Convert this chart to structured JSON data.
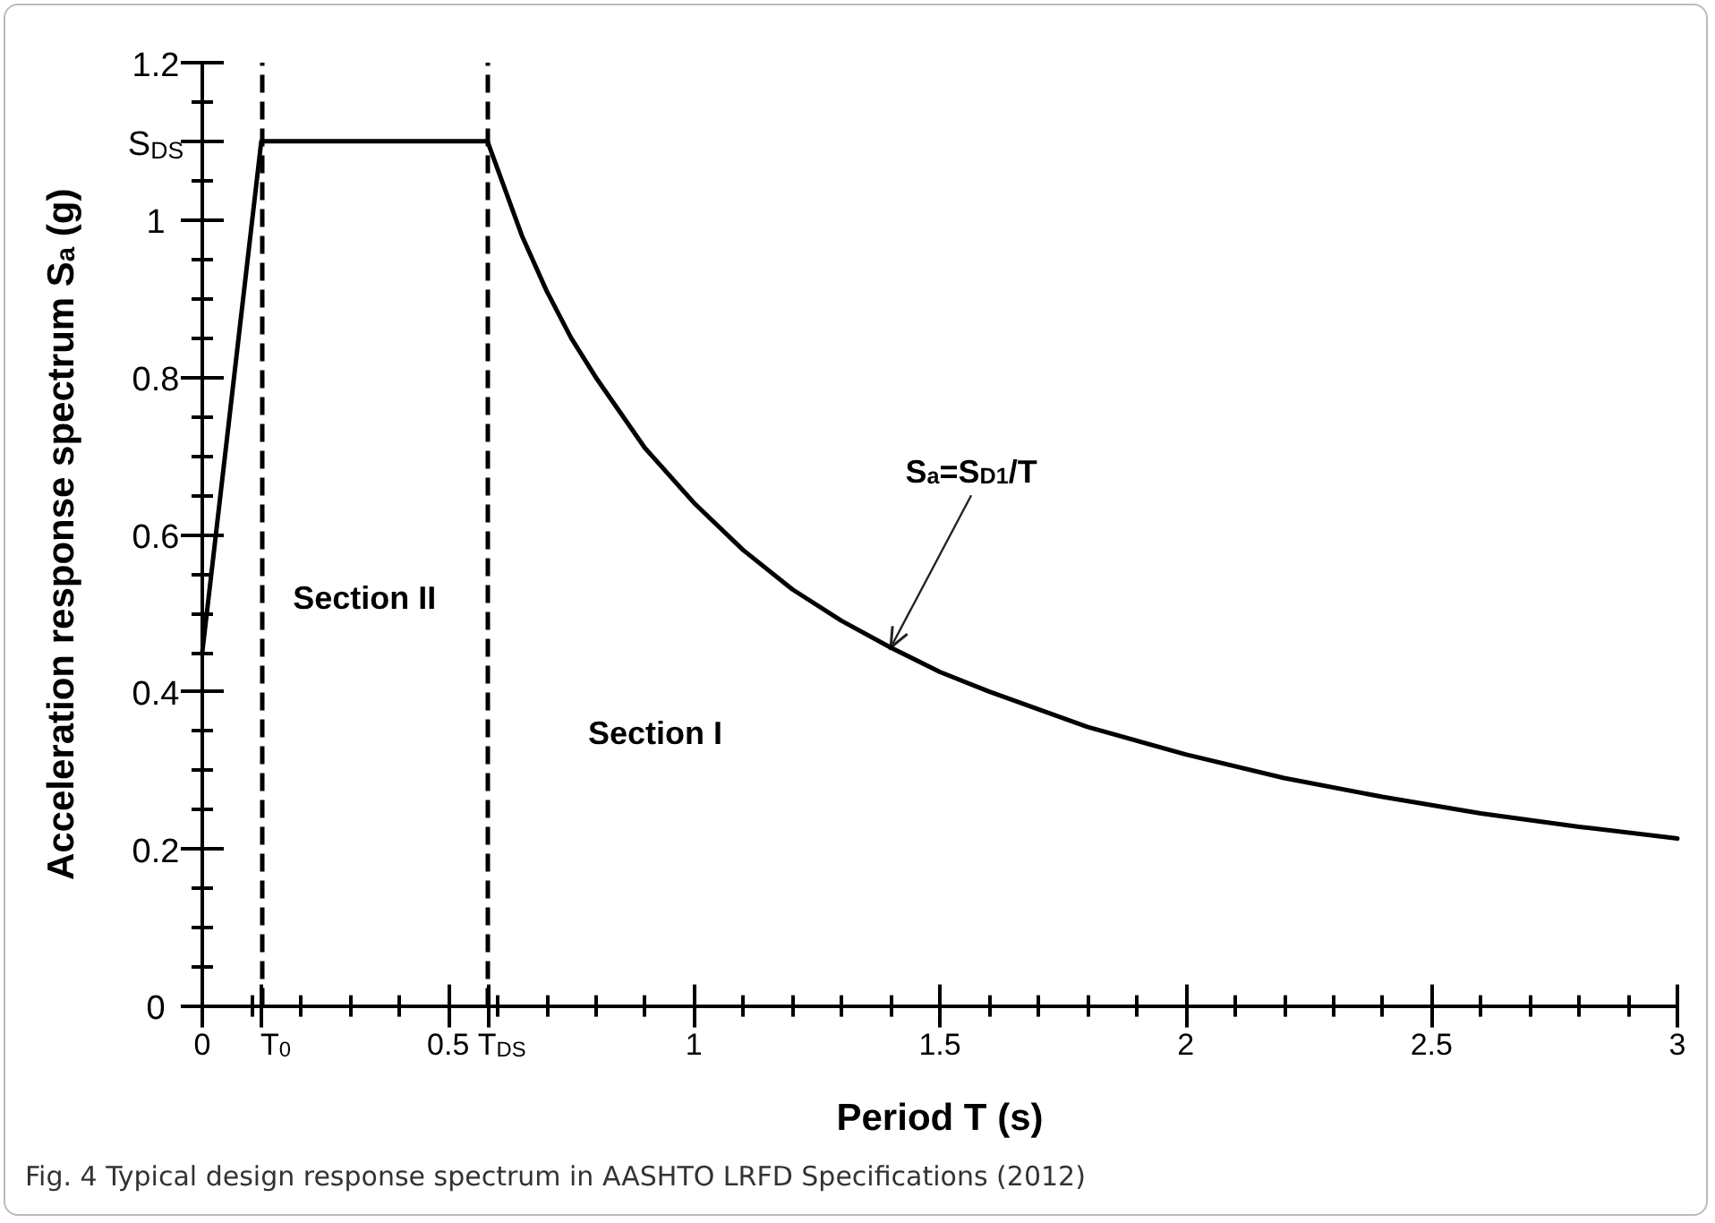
{
  "chart_data": {
    "type": "line",
    "xlabel": "Period T (s)",
    "ylabel": "Acceleration response spectrum S$_{a}$ (g)",
    "series": [
      {
        "color": "#000000",
        "x": [
          0,
          0.12,
          0.58,
          0.65,
          0.7,
          0.75,
          0.8,
          0.9,
          1.0,
          1.1,
          1.2,
          1.3,
          1.4,
          1.5,
          1.6,
          1.8,
          2.0,
          2.2,
          2.4,
          2.6,
          2.8,
          3.0
        ],
        "values": [
          0.45,
          1.1,
          1.1,
          0.98,
          0.91,
          0.85,
          0.8,
          0.71,
          0.64,
          0.58,
          0.53,
          0.49,
          0.456,
          0.425,
          0.4,
          0.355,
          0.32,
          0.29,
          0.266,
          0.245,
          0.228,
          0.213
        ]
      }
    ],
    "xlim": [
      0,
      3
    ],
    "ylim": [
      0,
      1.2
    ],
    "xticks": [
      0,
      {
        "value": 0.1,
        "label": null
      },
      {
        "value": 0.12,
        "label": "T$_{0}$"
      },
      {
        "value": 0.2,
        "label": null
      },
      {
        "value": 0.3,
        "label": null
      },
      {
        "value": 0.4,
        "label": null
      },
      0.5,
      {
        "value": 0.58,
        "label": "T$_{DS}$"
      },
      {
        "value": 0.6,
        "label": null
      },
      {
        "value": 0.7,
        "label": null
      },
      {
        "value": 0.8,
        "label": null
      },
      {
        "value": 0.9,
        "label": null
      },
      1,
      {
        "value": 1.1,
        "label": null
      },
      {
        "value": 1.2,
        "label": null
      },
      {
        "value": 1.3,
        "label": null
      },
      {
        "value": 1.4,
        "label": null
      },
      1.5,
      {
        "value": 1.6,
        "label": null
      },
      {
        "value": 1.7,
        "label": null
      },
      {
        "value": 1.8,
        "label": null
      },
      {
        "value": 1.9,
        "label": null
      },
      2,
      {
        "value": 2.1,
        "label": null
      },
      {
        "value": 2.2,
        "label": null
      },
      {
        "value": 2.3,
        "label": null
      },
      {
        "value": 2.4,
        "label": null
      },
      2.5,
      {
        "value": 2.6,
        "label": null
      },
      {
        "value": 2.7,
        "label": null
      },
      {
        "value": 2.8,
        "label": null
      },
      {
        "value": 2.9,
        "label": null
      },
      3
    ],
    "yticks": [
      0,
      {
        "value": 0.05,
        "label": null
      },
      {
        "value": 0.1,
        "label": null
      },
      {
        "value": 0.15,
        "label": null
      },
      0.2,
      {
        "value": 0.25,
        "label": null
      },
      {
        "value": 0.3,
        "label": null
      },
      {
        "value": 0.35,
        "label": null
      },
      0.4,
      {
        "value": 0.45,
        "label": null
      },
      {
        "value": 0.5,
        "label": null
      },
      {
        "value": 0.55,
        "label": null
      },
      0.6,
      {
        "value": 0.65,
        "label": null
      },
      {
        "value": 0.7,
        "label": null
      },
      {
        "value": 0.75,
        "label": null
      },
      0.8,
      {
        "value": 0.85,
        "label": null
      },
      {
        "value": 0.9,
        "label": null
      },
      {
        "value": 0.95,
        "label": null
      },
      1,
      {
        "value": 1.05,
        "label": null
      },
      {
        "value": 1.1,
        "label": "S$_{DS}$"
      },
      {
        "value": 1.15,
        "label": null
      },
      1.2
    ],
    "ref_lines": [
      {
        "axis": "x",
        "value": 0.12,
        "line_style": "dashed",
        "color": "#000000"
      },
      {
        "axis": "x",
        "value": 0.58,
        "line_style": "dashed",
        "color": "#000000"
      }
    ],
    "annotations": [
      "Section II",
      "Section I",
      {
        "text": "S$_{a}$=S$_{D1}$/T",
        "x": 1.4,
        "y": 0.456
      },
      "Fig. 4 Typical design response spectrum in AASHTO LRFD Specifications (2012)"
    ],
    "grid": false,
    "marker": "none",
    "line_style": "solid"
  }
}
